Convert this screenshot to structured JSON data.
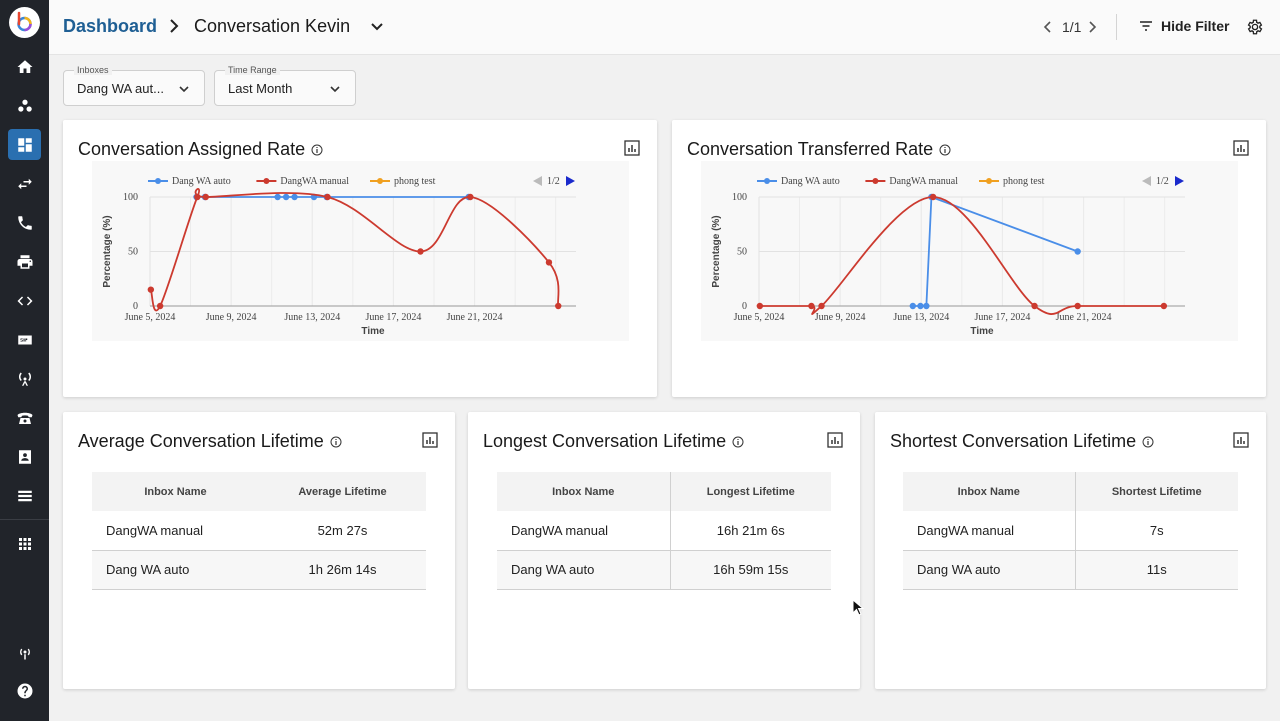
{
  "header": {
    "breadcrumb_root": "Dashboard",
    "breadcrumb_current": "Conversation Kevin",
    "pager": "1/1",
    "hide_filter_label": "Hide Filter"
  },
  "filters": {
    "inboxes": {
      "label": "Inboxes",
      "value": "Dang WA aut..."
    },
    "time_range": {
      "label": "Time Range",
      "value": "Last Month"
    }
  },
  "colors": {
    "accent": "#2a6fb0",
    "series_auto": "#4a8ee8",
    "series_manual": "#cc3a2f",
    "series_phong": "#f0a020"
  },
  "cards": {
    "assigned": {
      "title": "Conversation Assigned Rate"
    },
    "transferred": {
      "title": "Conversation Transferred Rate"
    },
    "average": {
      "title": "Average Conversation Lifetime",
      "col1": "Inbox Name",
      "col2": "Average Lifetime",
      "rows": [
        {
          "name": "DangWA manual",
          "value": "52m 27s"
        },
        {
          "name": "Dang WA auto",
          "value": "1h 26m 14s"
        }
      ]
    },
    "longest": {
      "title": "Longest Conversation Lifetime",
      "col1": "Inbox Name",
      "col2": "Longest Lifetime",
      "rows": [
        {
          "name": "DangWA manual",
          "value": "16h 21m 6s"
        },
        {
          "name": "Dang WA auto",
          "value": "16h 59m 15s"
        }
      ]
    },
    "shortest": {
      "title": "Shortest Conversation Lifetime",
      "col1": "Inbox Name",
      "col2": "Shortest Lifetime",
      "rows": [
        {
          "name": "DangWA manual",
          "value": "7s"
        },
        {
          "name": "Dang WA auto",
          "value": "11s"
        }
      ]
    }
  },
  "chart_data": [
    {
      "type": "line",
      "legend_placement": "top",
      "legend_page": "1/2",
      "xlabel": "Time",
      "ylabel": "Percentage (%)",
      "x_range": [
        "2024-06-05",
        "2024-06-26"
      ],
      "ylim": [
        0,
        100
      ],
      "y_ticks": [
        "0",
        "50",
        "100"
      ],
      "x_ticks": [
        {
          "date": "2024-06-05",
          "label": "June 5, 2024"
        },
        {
          "date": "2024-06-09",
          "label": "June 9, 2024"
        },
        {
          "date": "2024-06-13",
          "label": "June 13, 2024"
        },
        {
          "date": "2024-06-17",
          "label": "June 17, 2024"
        },
        {
          "date": "2024-06-21",
          "label": "June 21, 2024"
        }
      ],
      "grid": true,
      "series": [
        {
          "name": "Dang WA auto",
          "color": "#4a8ee8",
          "smooth": false,
          "points": [
            [
              "2024-06-07 07:00",
              100
            ],
            [
              "2024-06-07 17:00",
              100
            ],
            [
              "2024-06-11 07:00",
              100
            ],
            [
              "2024-06-11 17:00",
              100
            ],
            [
              "2024-06-12 03:00",
              100
            ],
            [
              "2024-06-13 02:00",
              100
            ],
            [
              "2024-06-13 17:00",
              100
            ],
            [
              "2024-06-20 17:00",
              100
            ]
          ]
        },
        {
          "name": "DangWA manual",
          "color": "#cc3a2f",
          "smooth": true,
          "points": [
            [
              "2024-06-05 01:00",
              15
            ],
            [
              "2024-06-05 12:00",
              0
            ],
            [
              "2024-06-07 08:00",
              100
            ],
            [
              "2024-06-07 18:00",
              100
            ],
            [
              "2024-06-13 18:00",
              100
            ],
            [
              "2024-06-18 08:00",
              50
            ],
            [
              "2024-06-20 19:00",
              100
            ],
            [
              "2024-06-24 16:00",
              40
            ],
            [
              "2024-06-25 03:00",
              0
            ]
          ]
        },
        {
          "name": "phong test",
          "color": "#f0a020",
          "smooth": false,
          "points": []
        }
      ]
    },
    {
      "type": "line",
      "legend_placement": "top",
      "legend_page": "1/2",
      "xlabel": "Time",
      "ylabel": "Percentage (%)",
      "x_range": [
        "2024-06-05",
        "2024-06-26"
      ],
      "ylim": [
        0,
        100
      ],
      "y_ticks": [
        "0",
        "50",
        "100"
      ],
      "x_ticks": [
        {
          "date": "2024-06-05",
          "label": "June 5, 2024"
        },
        {
          "date": "2024-06-09",
          "label": "June 9, 2024"
        },
        {
          "date": "2024-06-13",
          "label": "June 13, 2024"
        },
        {
          "date": "2024-06-17",
          "label": "June 17, 2024"
        },
        {
          "date": "2024-06-21",
          "label": "June 21, 2024"
        }
      ],
      "grid": true,
      "series": [
        {
          "name": "Dang WA auto",
          "color": "#4a8ee8",
          "smooth": false,
          "points": [
            [
              "2024-06-12 14:00",
              0
            ],
            [
              "2024-06-12 23:00",
              0
            ],
            [
              "2024-06-13 06:00",
              0
            ],
            [
              "2024-06-13 12:00",
              100
            ],
            [
              "2024-06-20 17:00",
              50
            ]
          ]
        },
        {
          "name": "DangWA manual",
          "color": "#cc3a2f",
          "smooth": true,
          "points": [
            [
              "2024-06-05 01:00",
              0
            ],
            [
              "2024-06-07 14:00",
              0
            ],
            [
              "2024-06-08 02:00",
              0
            ],
            [
              "2024-06-13 14:00",
              100
            ],
            [
              "2024-06-18 14:00",
              0
            ],
            [
              "2024-06-20 17:00",
              0
            ],
            [
              "2024-06-24 23:00",
              0
            ]
          ]
        },
        {
          "name": "phong test",
          "color": "#f0a020",
          "smooth": false,
          "points": []
        }
      ]
    }
  ]
}
